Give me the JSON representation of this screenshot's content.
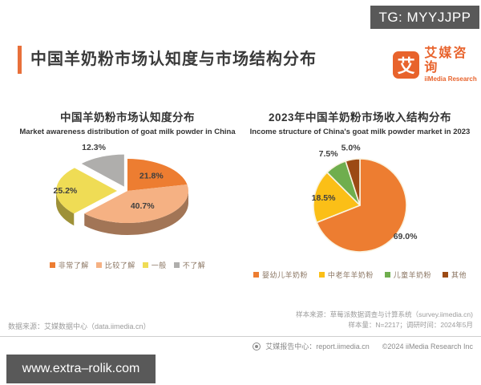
{
  "tg_badge": "TG: MYYJJPP",
  "watermark": "www.extra–rolik.com",
  "header": {
    "title": "中国羊奶粉市场认知度与市场结构分布",
    "accent_color": "#E8703A",
    "logo": {
      "glyph": "艾",
      "name_cn": "艾媒咨询",
      "name_en": "iiMedia Research",
      "brand_color": "#E8632C"
    }
  },
  "chart_data": [
    {
      "type": "pie",
      "style": "3d-exploded",
      "title": "中国羊奶粉市场认知度分布",
      "subtitle": "Market awareness distribution of goat milk powder in China",
      "unit": "%",
      "start_angle": 0,
      "direction": "clockwise-from-top",
      "legend_position": "bottom",
      "slices": [
        {
          "label": "非常了解",
          "value": 21.8,
          "color": "#ED7D31",
          "explode": 0,
          "label_r": 0.62
        },
        {
          "label": "比较了解",
          "value": 40.7,
          "color": "#F5B183",
          "explode": 0,
          "label_r": 0.52
        },
        {
          "label": "一般",
          "value": 25.2,
          "color": "#EFDC55",
          "explode": 13,
          "label_r": 0.85
        },
        {
          "label": "不了解",
          "value": 12.3,
          "color": "#AFAEAC",
          "explode": 11,
          "label_r": 1.32
        }
      ]
    },
    {
      "type": "pie",
      "style": "flat",
      "title": "2023年中国羊奶粉市场收入结构分布",
      "subtitle": "Income structure of China's goat milk powder market in 2023",
      "unit": "%",
      "start_angle": 0,
      "direction": "clockwise-from-top",
      "legend_position": "bottom",
      "slices": [
        {
          "label": "婴幼儿羊奶粉",
          "value": 69.0,
          "color": "#ED7D31",
          "explode": 0,
          "label_r": 1.18
        },
        {
          "label": "中老年羊奶粉",
          "value": 18.5,
          "color": "#FBBF17",
          "explode": 0,
          "label_r": 0.8
        },
        {
          "label": "儿童羊奶粉",
          "value": 7.5,
          "color": "#6FAE4E",
          "explode": 0,
          "label_r": 1.3
        },
        {
          "label": "其他",
          "value": 5.0,
          "color": "#9C4A14",
          "explode": 0,
          "label_r": 1.26
        }
      ]
    }
  ],
  "footer": {
    "source_left": "数据来源：艾媒数据中心（data.iimedia.cn）",
    "sample_source": "样本来源：草莓派数据调查与计算系统（survey.iimedia.cn)",
    "sample_info": "样本量：N=2217；调研时间：2024年5月",
    "report_center": "艾媒报告中心：report.iimedia.cn",
    "copyright": "©2024  iiMedia Research  Inc"
  }
}
